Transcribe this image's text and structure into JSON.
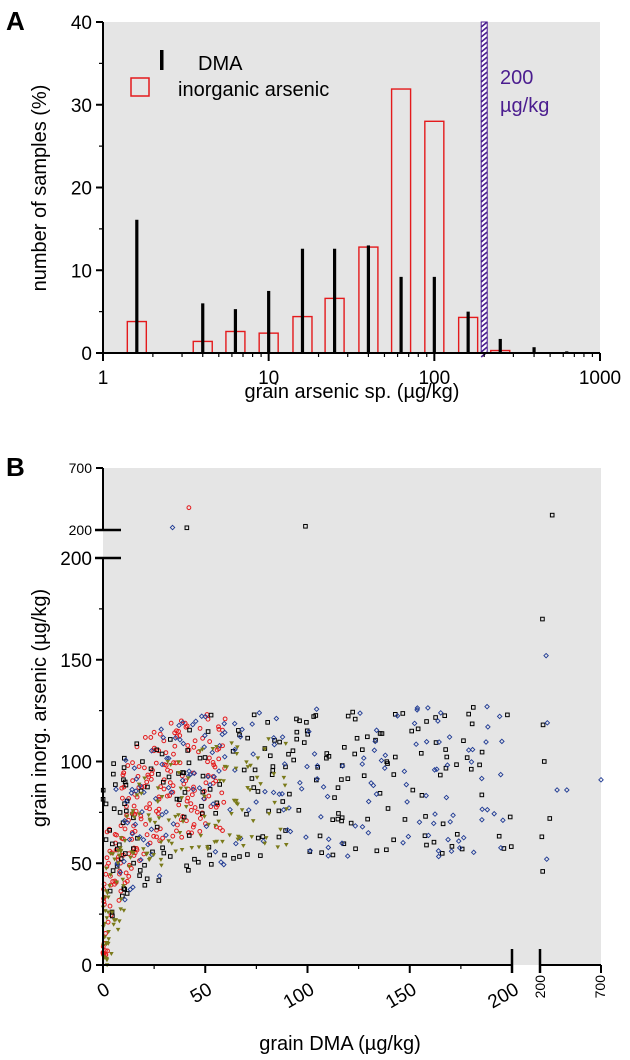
{
  "chart_data": [
    {
      "panel": "A",
      "type": "bar",
      "xscale": "log",
      "xlim": [
        1,
        1000
      ],
      "ylim": [
        0,
        40
      ],
      "xlabel": "grain arsenic sp. (µg/kg)",
      "ylabel": "number of samples (%)",
      "xticks": [
        "1",
        "10",
        "100",
        "1000"
      ],
      "yticks": [
        "0",
        "10",
        "20",
        "30",
        "40"
      ],
      "background": "#e5e5e5",
      "legend_position": "top-left",
      "series": [
        {
          "name": "DMA",
          "color": "#000000",
          "style": "thin-bar",
          "x": [
            1.6,
            2.5,
            4,
            6.3,
            10,
            16,
            25,
            40,
            63,
            100,
            160,
            250,
            400,
            630
          ],
          "values": [
            16.1,
            0.1,
            6.0,
            5.3,
            7.5,
            12.6,
            12.6,
            13.0,
            9.2,
            9.2,
            5.0,
            1.7,
            0.7,
            0.2
          ]
        },
        {
          "name": "inorganic arsenic",
          "color": "#e41a1c",
          "style": "hollow-bar",
          "x": [
            1.6,
            2.5,
            4,
            6.3,
            10,
            16,
            25,
            40,
            63,
            100,
            160,
            250,
            400,
            630
          ],
          "values": [
            3.8,
            0,
            1.4,
            2.6,
            2.4,
            4.4,
            6.6,
            12.8,
            31.9,
            28.0,
            4.3,
            0.3,
            0,
            0
          ]
        }
      ],
      "threshold": {
        "x": 200,
        "label_line1": "200",
        "label_line2": "µg/kg",
        "color": "#4b1d8f"
      }
    },
    {
      "panel": "B",
      "type": "scatter",
      "xlabel": "grain DMA (µg/kg)",
      "ylabel": "grain inorg. arsenic (µg/kg)",
      "xlim": [
        0,
        700
      ],
      "ylim": [
        0,
        700
      ],
      "x_breaks": "linear 0–200, then compressed 200–700",
      "y_breaks": "linear 0–200, then compressed 200–700",
      "xticks": [
        "0",
        "50",
        "100",
        "150",
        "200",
        "200",
        "700"
      ],
      "yticks": [
        "0",
        "50",
        "100",
        "150",
        "200",
        "200",
        "700"
      ],
      "background": "#e5e5e5",
      "series": [
        {
          "name": "",
          "marker": "open-circle",
          "color": "#e41a1c",
          "seed": 11,
          "count": 230,
          "x_range": [
            0,
            60
          ],
          "y_range": [
            5,
            165
          ],
          "pattern": "cluster-rising"
        },
        {
          "name": "",
          "marker": "open-square",
          "color": "#000000",
          "seed": 23,
          "count": 220,
          "x_range": [
            0,
            200
          ],
          "y_range": [
            20,
            200
          ],
          "pattern": "broad"
        },
        {
          "name": "",
          "marker": "open-diamond",
          "color": "#1f3a93",
          "seed": 37,
          "count": 190,
          "x_range": [
            5,
            200
          ],
          "y_range": [
            30,
            185
          ],
          "pattern": "broad"
        },
        {
          "name": "",
          "marker": "filled-triangle-down",
          "color": "#7a7a1a",
          "seed": 53,
          "count": 160,
          "x_range": [
            0,
            90
          ],
          "y_range": [
            0,
            140
          ],
          "pattern": "cluster-low"
        }
      ],
      "outliers": [
        {
          "marker": "open-circle",
          "color": "#e41a1c",
          "x": 42,
          "y": 380
        },
        {
          "marker": "open-diamond",
          "color": "#1f3a93",
          "x": 34,
          "y": 220
        },
        {
          "marker": "open-square",
          "color": "#000000",
          "x": 41,
          "y": 218
        },
        {
          "marker": "open-square",
          "color": "#000000",
          "x": 99,
          "y": 230
        },
        {
          "marker": "open-square",
          "color": "#000000",
          "x": 300,
          "y": 320
        },
        {
          "marker": "open-diamond",
          "color": "#1f3a93",
          "x": 250,
          "y": 152
        },
        {
          "marker": "open-square",
          "color": "#000000",
          "x": 220,
          "y": 170
        },
        {
          "marker": "open-square",
          "color": "#000000",
          "x": 225,
          "y": 118
        },
        {
          "marker": "open-square",
          "color": "#000000",
          "x": 235,
          "y": 100
        },
        {
          "marker": "open-diamond",
          "color": "#1f3a93",
          "x": 260,
          "y": 119
        },
        {
          "marker": "open-square",
          "color": "#000000",
          "x": 280,
          "y": 72
        },
        {
          "marker": "open-diamond",
          "color": "#1f3a93",
          "x": 340,
          "y": 86
        },
        {
          "marker": "open-diamond",
          "color": "#1f3a93",
          "x": 420,
          "y": 86
        },
        {
          "marker": "open-diamond",
          "color": "#1f3a93",
          "x": 700,
          "y": 91
        },
        {
          "marker": "open-square",
          "color": "#000000",
          "x": 215,
          "y": 63
        },
        {
          "marker": "open-square",
          "color": "#000000",
          "x": 222,
          "y": 46
        },
        {
          "marker": "open-diamond",
          "color": "#1f3a93",
          "x": 255,
          "y": 52
        }
      ]
    }
  ],
  "panel_letters": {
    "a": "A",
    "b": "B"
  }
}
